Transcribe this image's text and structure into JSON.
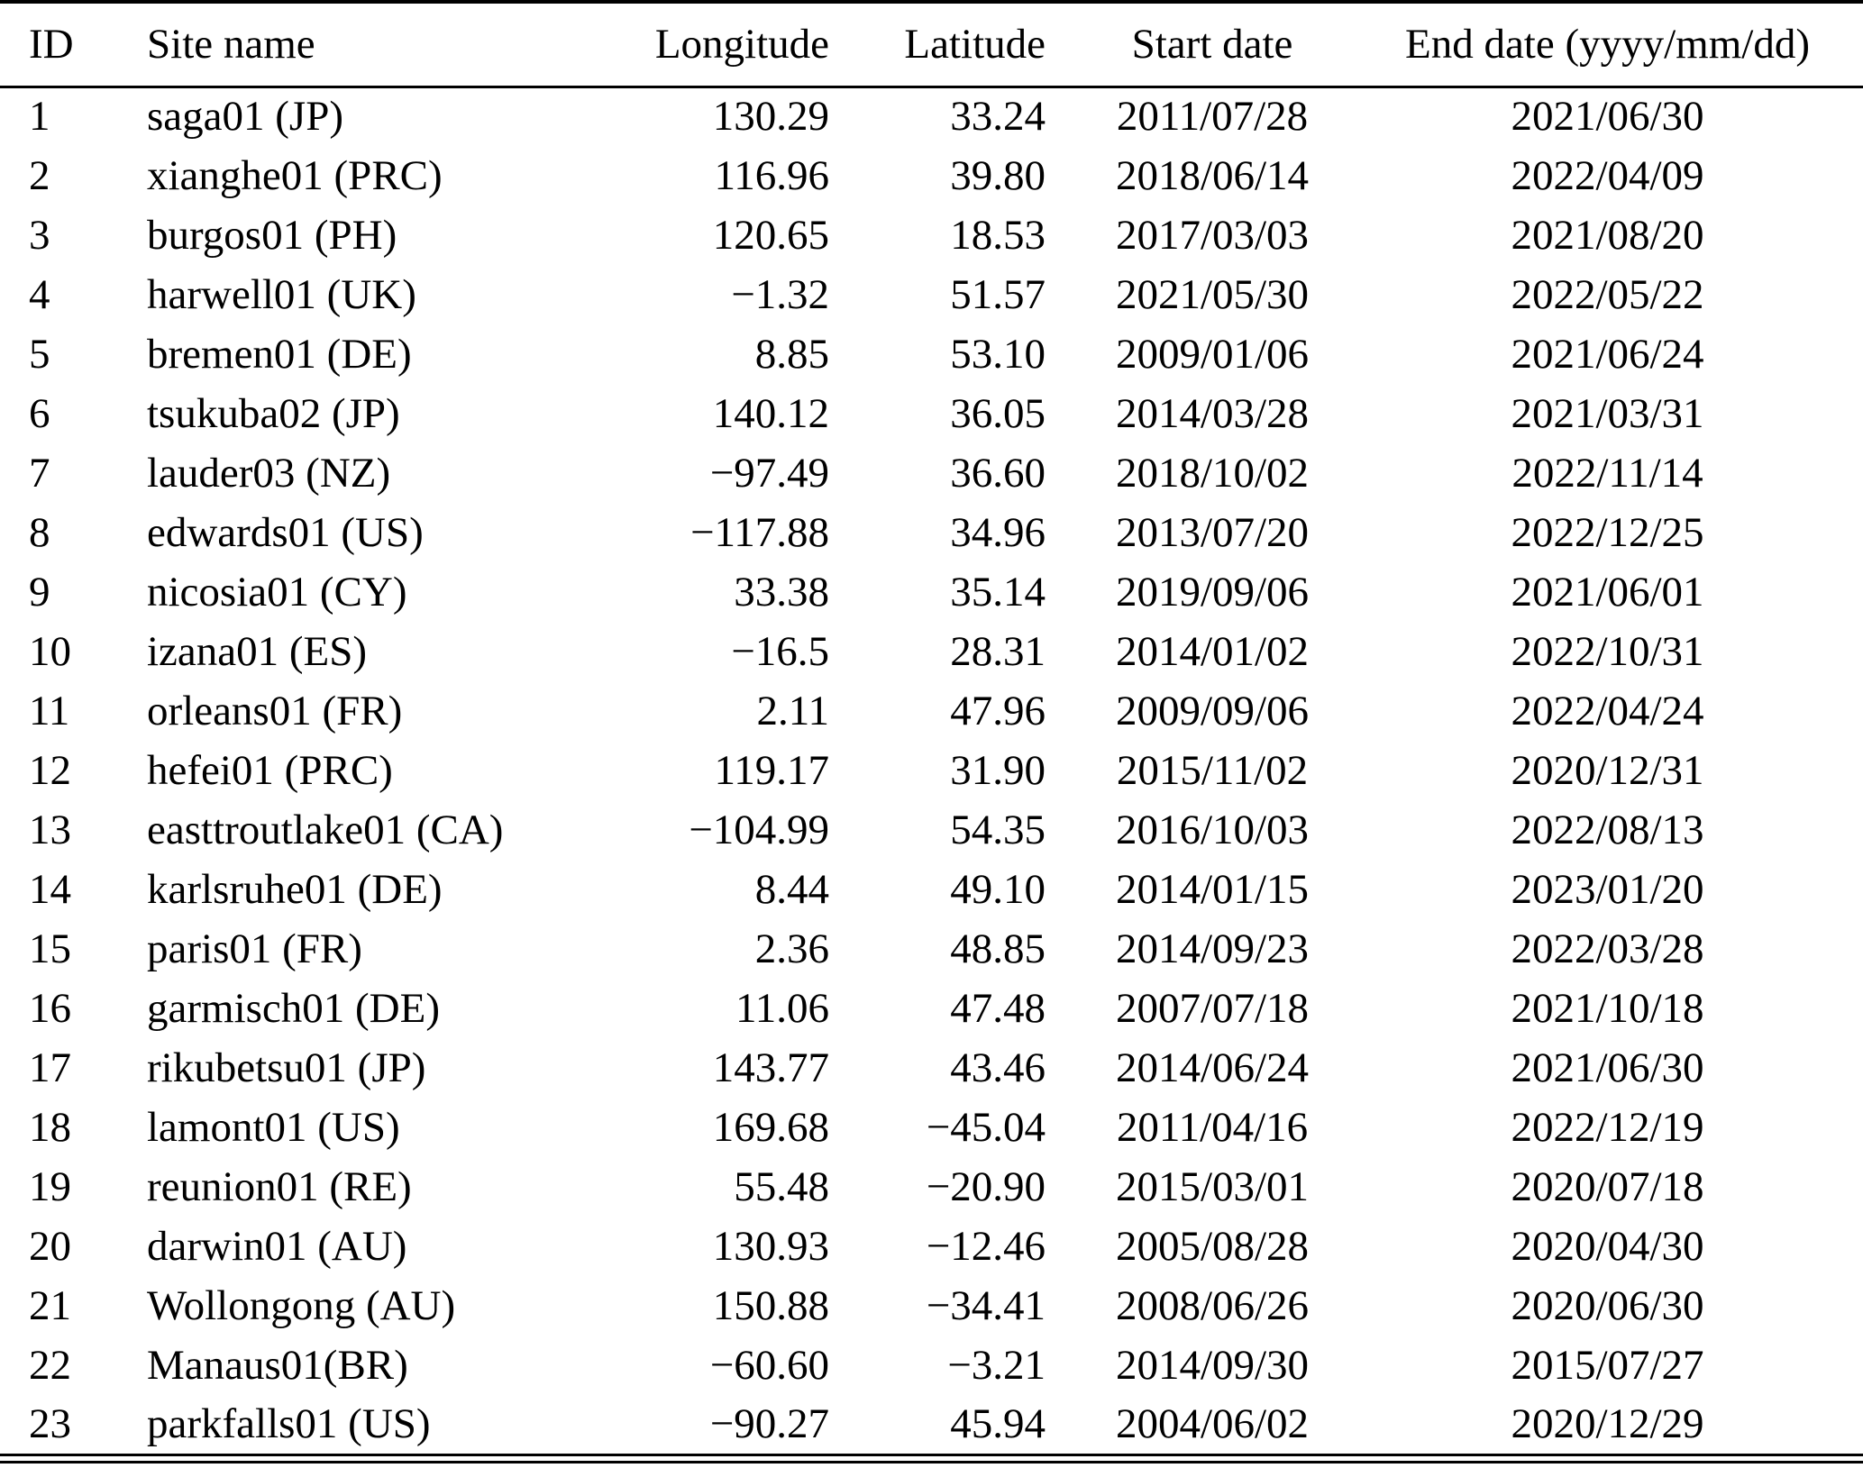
{
  "table": {
    "columns": [
      "ID",
      "Site name",
      "Longitude",
      "Latitude",
      "Start date",
      "End date (yyyy/mm/dd)"
    ],
    "rows": [
      [
        "1",
        "saga01 (JP)",
        "130.29",
        "33.24",
        "2011/07/28",
        "2021/06/30"
      ],
      [
        "2",
        "xianghe01 (PRC)",
        "116.96",
        "39.80",
        "2018/06/14",
        "2022/04/09"
      ],
      [
        "3",
        "burgos01 (PH)",
        "120.65",
        "18.53",
        "2017/03/03",
        "2021/08/20"
      ],
      [
        "4",
        "harwell01 (UK)",
        "−1.32",
        "51.57",
        "2021/05/30",
        "2022/05/22"
      ],
      [
        "5",
        "bremen01 (DE)",
        "8.85",
        "53.10",
        "2009/01/06",
        "2021/06/24"
      ],
      [
        "6",
        "tsukuba02 (JP)",
        "140.12",
        "36.05",
        "2014/03/28",
        "2021/03/31"
      ],
      [
        "7",
        "lauder03 (NZ)",
        "−97.49",
        "36.60",
        "2018/10/02",
        "2022/11/14"
      ],
      [
        "8",
        "edwards01 (US)",
        "−117.88",
        "34.96",
        "2013/07/20",
        "2022/12/25"
      ],
      [
        "9",
        "nicosia01 (CY)",
        "33.38",
        "35.14",
        "2019/09/06",
        "2021/06/01"
      ],
      [
        "10",
        "izana01 (ES)",
        "−16.5",
        "28.31",
        "2014/01/02",
        "2022/10/31"
      ],
      [
        "11",
        "orleans01 (FR)",
        "2.11",
        "47.96",
        "2009/09/06",
        "2022/04/24"
      ],
      [
        "12",
        "hefei01 (PRC)",
        "119.17",
        "31.90",
        "2015/11/02",
        "2020/12/31"
      ],
      [
        "13",
        "easttroutlake01 (CA)",
        "−104.99",
        "54.35",
        "2016/10/03",
        "2022/08/13"
      ],
      [
        "14",
        "karlsruhe01 (DE)",
        "8.44",
        "49.10",
        "2014/01/15",
        "2023/01/20"
      ],
      [
        "15",
        "paris01 (FR)",
        "2.36",
        "48.85",
        "2014/09/23",
        "2022/03/28"
      ],
      [
        "16",
        "garmisch01 (DE)",
        "11.06",
        "47.48",
        "2007/07/18",
        "2021/10/18"
      ],
      [
        "17",
        "rikubetsu01 (JP)",
        "143.77",
        "43.46",
        "2014/06/24",
        "2021/06/30"
      ],
      [
        "18",
        "lamont01 (US)",
        "169.68",
        "−45.04",
        "2011/04/16",
        "2022/12/19"
      ],
      [
        "19",
        "reunion01 (RE)",
        "55.48",
        "−20.90",
        "2015/03/01",
        "2020/07/18"
      ],
      [
        "20",
        "darwin01 (AU)",
        "130.93",
        "−12.46",
        "2005/08/28",
        "2020/04/30"
      ],
      [
        "21",
        "Wollongong (AU)",
        "150.88",
        "−34.41",
        "2008/06/26",
        "2020/06/30"
      ],
      [
        "22",
        "Manaus01(BR)",
        "−60.60",
        "−3.21",
        "2014/09/30",
        "2015/07/27"
      ],
      [
        "23",
        "parkfalls01 (US)",
        "−90.27",
        "45.94",
        "2004/06/02",
        "2020/12/29"
      ]
    ]
  }
}
